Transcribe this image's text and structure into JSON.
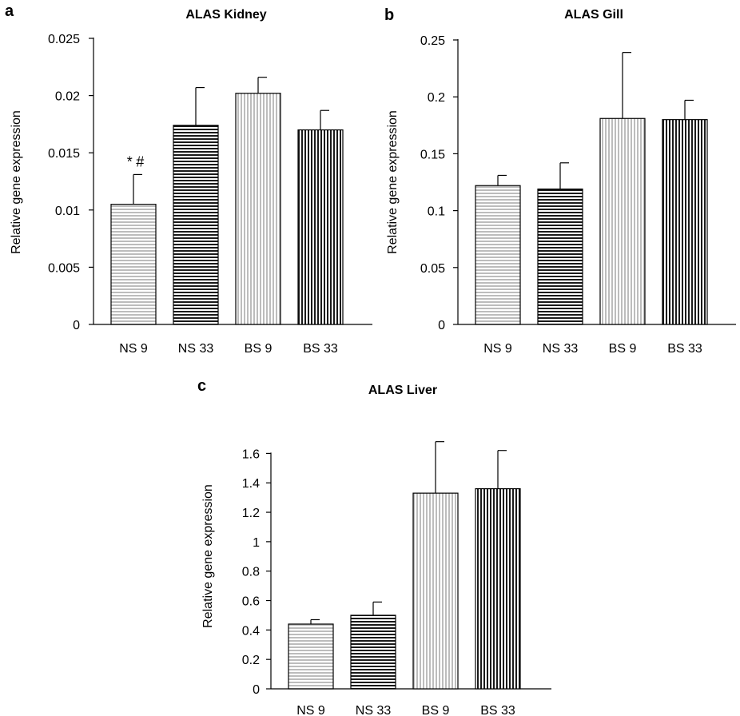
{
  "colors": {
    "light_stripe": "#b4b4b4",
    "dark_stripe": "#1a1a1a",
    "axis": "#000000",
    "background": "#ffffff"
  },
  "chart_data": [
    {
      "panel": "a",
      "type": "bar",
      "title": "ALAS Kidney",
      "ylabel": "Relative gene expression",
      "xlabel": "",
      "categories": [
        "NS 9",
        "NS 33",
        "BS 9",
        "BS 33"
      ],
      "values": [
        0.0105,
        0.0174,
        0.0202,
        0.017
      ],
      "errors": [
        0.0026,
        0.0033,
        0.0014,
        0.0017
      ],
      "patterns": [
        "light-horizontal",
        "dark-horizontal",
        "light-vertical",
        "dark-vertical"
      ],
      "yticks": [
        "0",
        "0.005",
        "0.01",
        "0.015",
        "0.02",
        "0.025"
      ],
      "ylim": [
        0,
        0.025
      ],
      "grid": false,
      "annotations": [
        {
          "category": "NS 9",
          "text": "* #"
        }
      ]
    },
    {
      "panel": "b",
      "type": "bar",
      "title": "ALAS Gill",
      "ylabel": "Relative gene expression",
      "xlabel": "",
      "categories": [
        "NS 9",
        "NS 33",
        "BS 9",
        "BS 33"
      ],
      "values": [
        0.122,
        0.119,
        0.181,
        0.18
      ],
      "errors": [
        0.009,
        0.023,
        0.058,
        0.017
      ],
      "patterns": [
        "light-horizontal",
        "dark-horizontal",
        "light-vertical",
        "dark-vertical"
      ],
      "yticks": [
        "0",
        "0.05",
        "0.1",
        "0.15",
        "0.2",
        "0.25"
      ],
      "ylim": [
        0,
        0.25
      ],
      "grid": false,
      "annotations": []
    },
    {
      "panel": "c",
      "type": "bar",
      "title": "ALAS Liver",
      "ylabel": "Relative gene expression",
      "xlabel": "",
      "categories": [
        "NS 9",
        "NS 33",
        "BS 9",
        "BS 33"
      ],
      "values": [
        0.44,
        0.5,
        1.33,
        1.36
      ],
      "errors": [
        0.03,
        0.09,
        0.35,
        0.26
      ],
      "patterns": [
        "light-horizontal",
        "dark-horizontal",
        "light-vertical",
        "dark-vertical"
      ],
      "yticks": [
        "0",
        "0.2",
        "0.4",
        "0.6",
        "0.8",
        "1",
        "1.2",
        "1.4",
        "1.6"
      ],
      "ylim": [
        0,
        1.7
      ],
      "grid": false,
      "annotations": []
    }
  ]
}
